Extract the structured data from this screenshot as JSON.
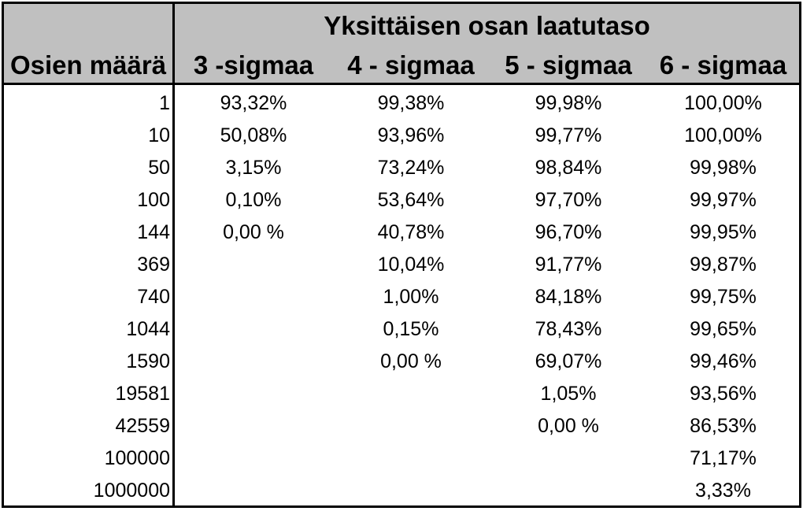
{
  "table": {
    "title": "Yksittäisen osan laatutaso",
    "row_header": "Osien määrä",
    "columns": [
      "3 -sigmaa",
      "4 - sigmaa",
      "5 - sigmaa",
      "6 - sigmaa"
    ],
    "rows": [
      {
        "n": "1",
        "v": [
          "93,32%",
          "99,38%",
          "99,98%",
          "100,00%"
        ]
      },
      {
        "n": "10",
        "v": [
          "50,08%",
          "93,96%",
          "99,77%",
          "100,00%"
        ]
      },
      {
        "n": "50",
        "v": [
          "3,15%",
          "73,24%",
          "98,84%",
          "99,98%"
        ]
      },
      {
        "n": "100",
        "v": [
          "0,10%",
          "53,64%",
          "97,70%",
          "99,97%"
        ]
      },
      {
        "n": "144",
        "v": [
          "0,00 %",
          "40,78%",
          "96,70%",
          "99,95%"
        ]
      },
      {
        "n": "369",
        "v": [
          "",
          "10,04%",
          "91,77%",
          "99,87%"
        ]
      },
      {
        "n": "740",
        "v": [
          "",
          "1,00%",
          "84,18%",
          "99,75%"
        ]
      },
      {
        "n": "1044",
        "v": [
          "",
          "0,15%",
          "78,43%",
          "99,65%"
        ]
      },
      {
        "n": "1590",
        "v": [
          "",
          "0,00 %",
          "69,07%",
          "99,46%"
        ]
      },
      {
        "n": "19581",
        "v": [
          "",
          "",
          "1,05%",
          "93,56%"
        ]
      },
      {
        "n": "42559",
        "v": [
          "",
          "",
          "0,00 %",
          "86,53%"
        ]
      },
      {
        "n": "100000",
        "v": [
          "",
          "",
          "",
          "71,17%"
        ]
      },
      {
        "n": "1000000",
        "v": [
          "",
          "",
          "",
          "3,33%"
        ]
      }
    ]
  }
}
